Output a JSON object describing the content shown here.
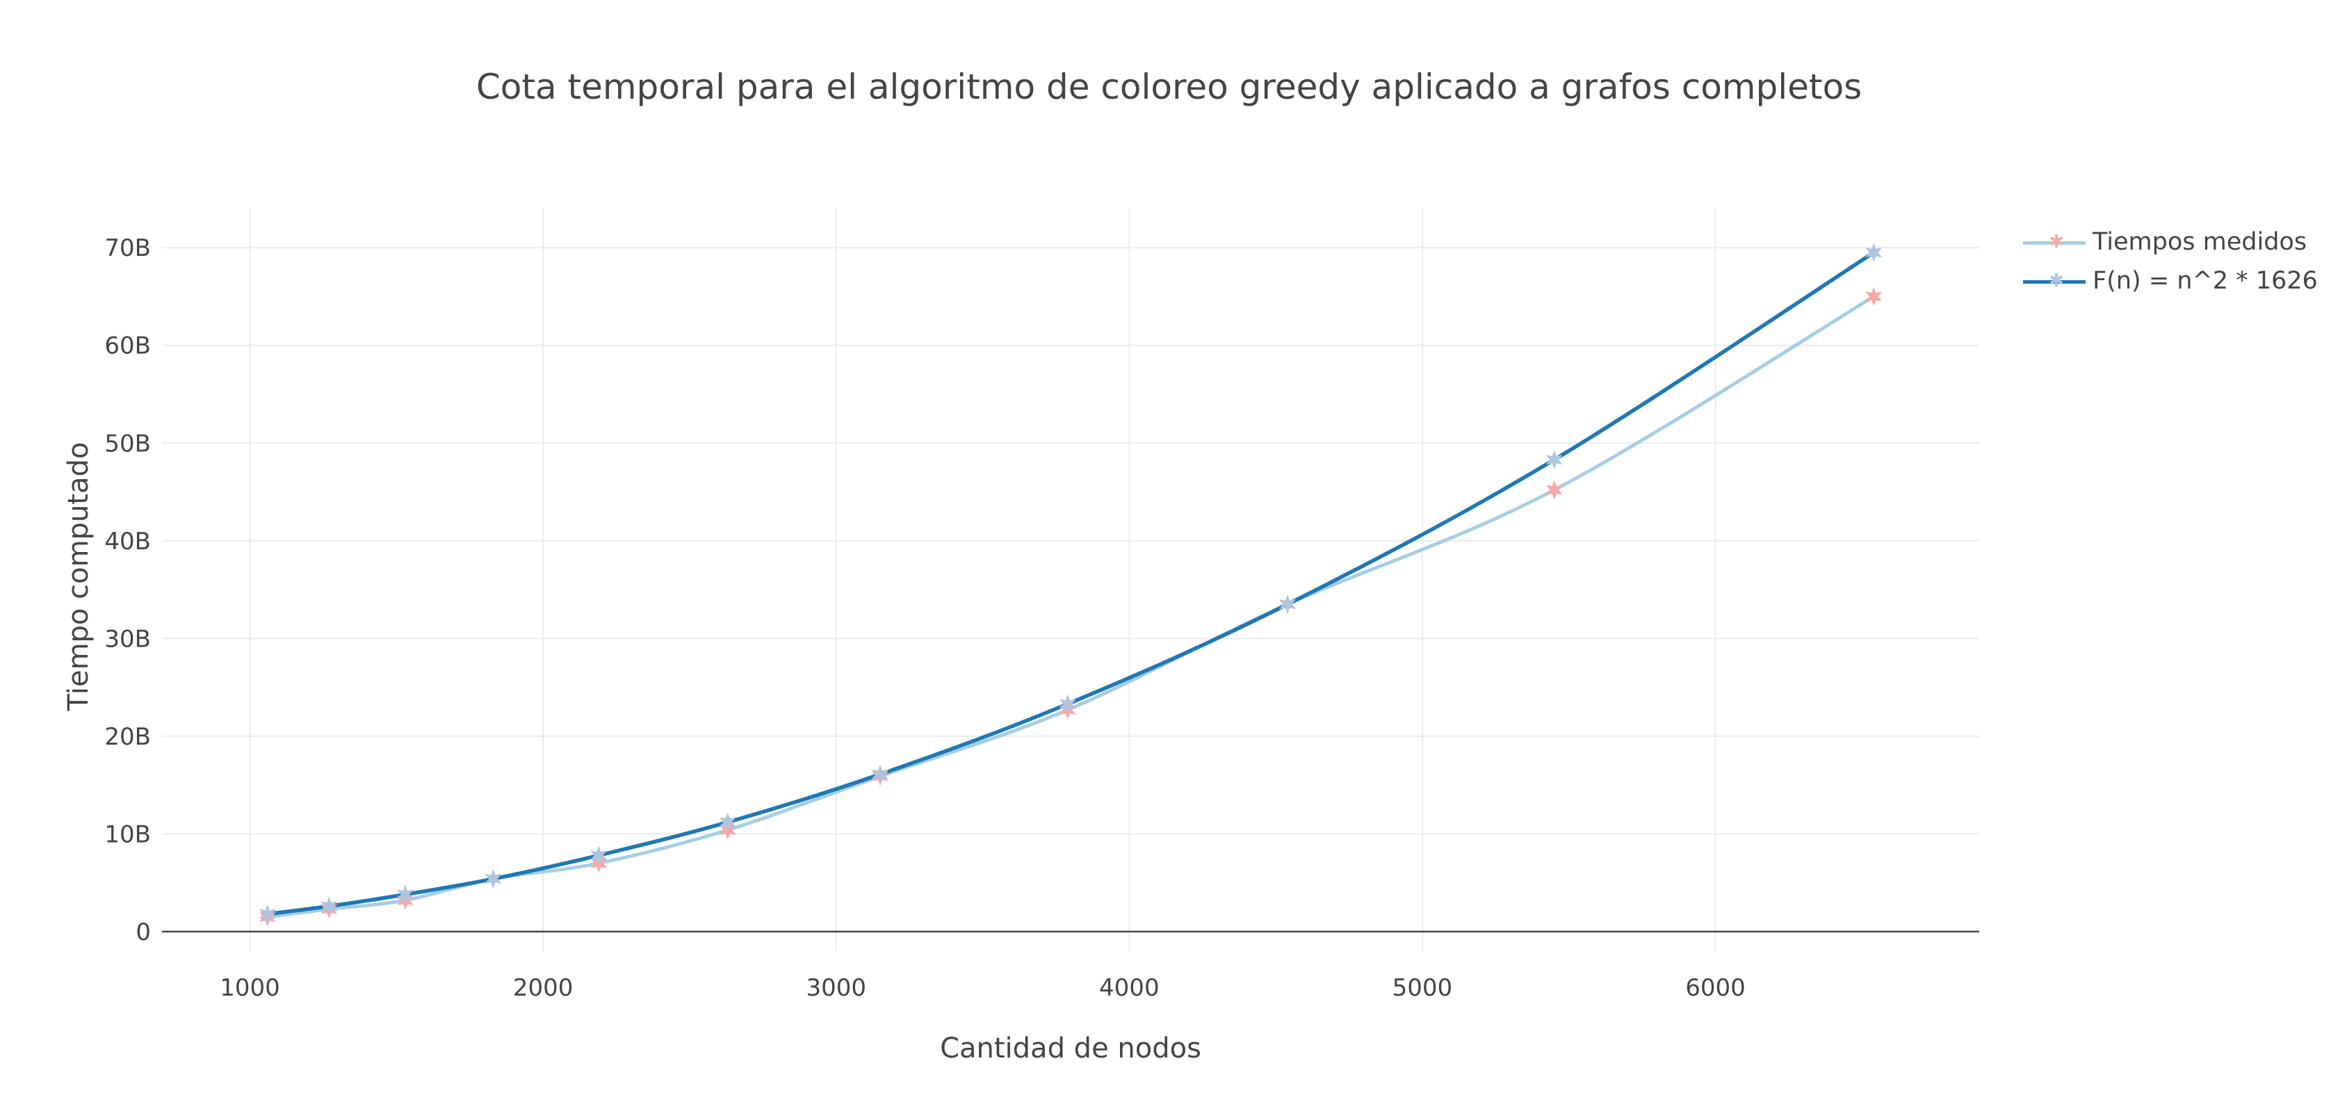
{
  "chart_data": {
    "type": "line",
    "title": "Cota temporal para el algoritmo de coloreo greedy aplicado a grafos completos",
    "xlabel": "Cantidad de nodos",
    "ylabel": "Tiempo computado",
    "xlim": [
      700,
      6900
    ],
    "ylim": [
      -2,
      74
    ],
    "x_ticks": [
      1000,
      2000,
      3000,
      4000,
      5000,
      6000
    ],
    "x_tick_labels": [
      "1000",
      "2000",
      "3000",
      "4000",
      "5000",
      "6000"
    ],
    "y_ticks": [
      0,
      10,
      20,
      30,
      40,
      50,
      60,
      70
    ],
    "y_tick_labels": [
      "0",
      "10B",
      "20B",
      "30B",
      "40B",
      "50B",
      "60B",
      "70B"
    ],
    "y_unit": "B",
    "grid": true,
    "legend_position": "top-right",
    "series": [
      {
        "name": "Tiempos medidos",
        "color": "#a6cee3",
        "marker_color": "#f7a8a8",
        "marker": "star",
        "x": [
          1060,
          1270,
          1530,
          1830,
          2190,
          2630,
          3150,
          3790,
          4540,
          5450,
          6540
        ],
        "y": [
          1.5,
          2.3,
          3.2,
          5.4,
          7.0,
          10.4,
          15.9,
          22.7,
          33.5,
          45.2,
          65.0
        ]
      },
      {
        "name": "F(n) = n^2 * 1626",
        "color": "#1f78b4",
        "marker_color": "#b0c4de",
        "marker": "star",
        "x": [
          1060,
          1270,
          1530,
          1830,
          2190,
          2630,
          3150,
          3790,
          4540,
          5450,
          6540
        ],
        "y": [
          1.8,
          2.6,
          3.8,
          5.4,
          7.8,
          11.2,
          16.1,
          23.3,
          33.5,
          48.3,
          69.5
        ]
      }
    ]
  }
}
